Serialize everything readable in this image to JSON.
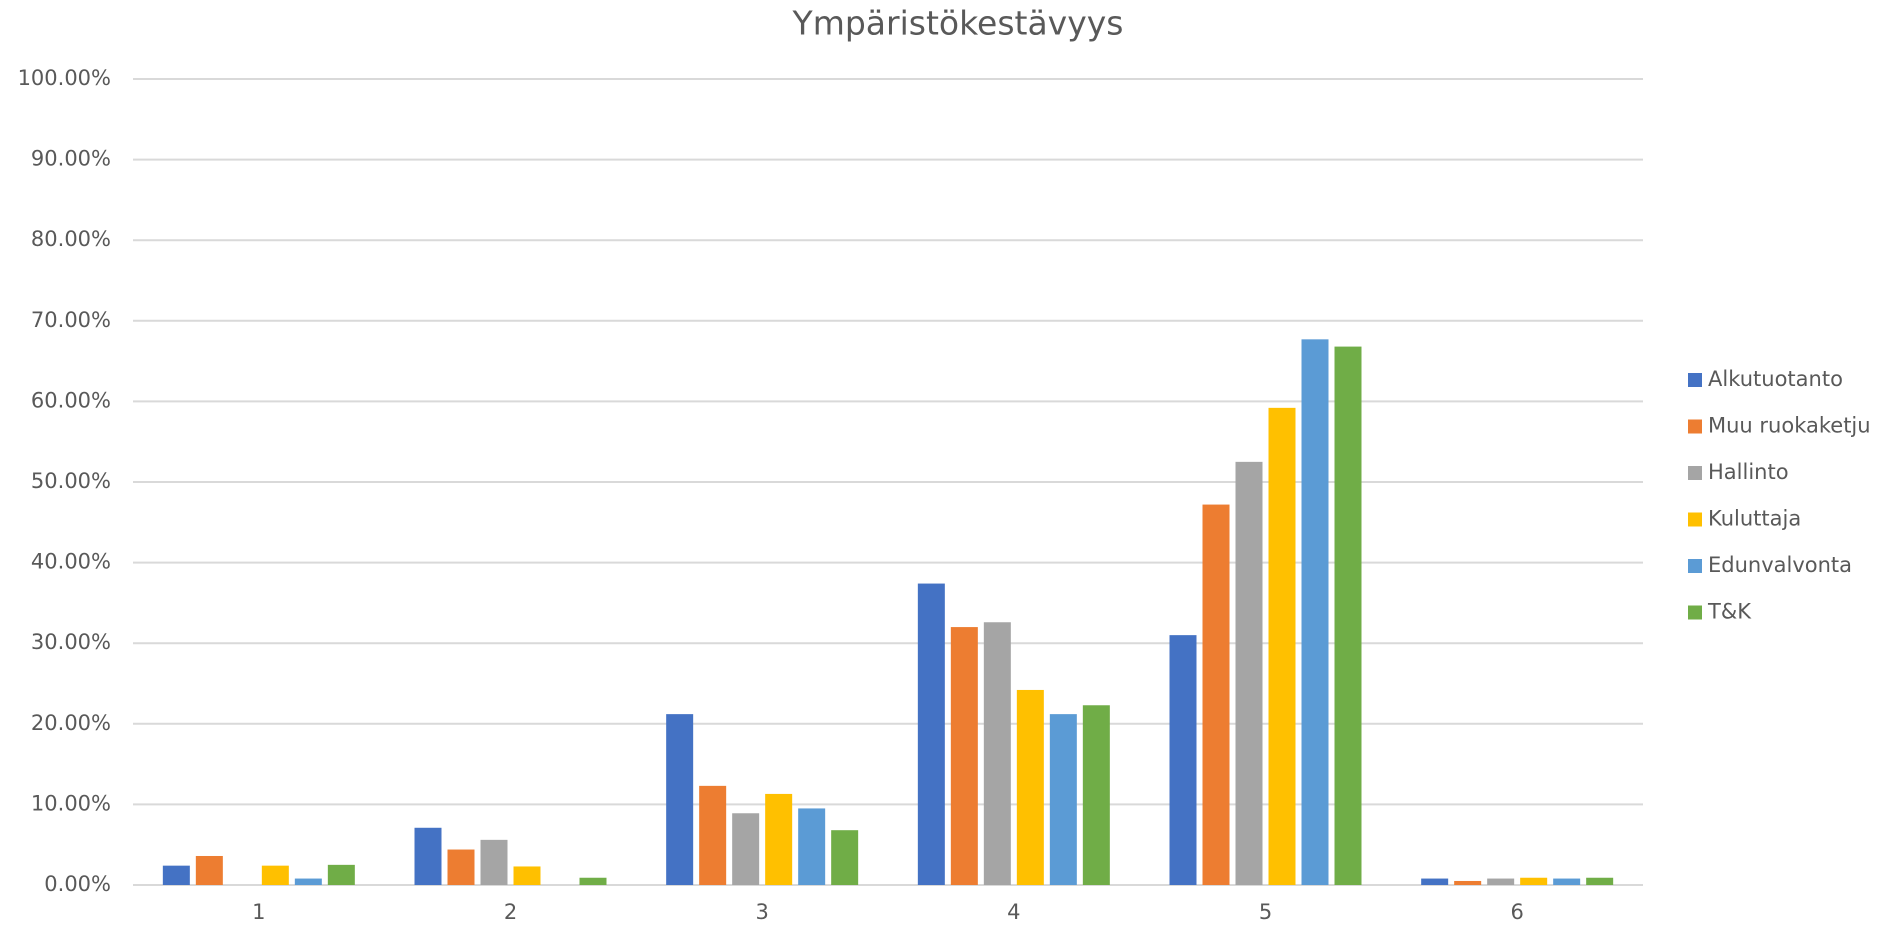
{
  "chart_data": {
    "type": "bar",
    "title": "Ympäristökestävyys",
    "categories": [
      "1",
      "2",
      "3",
      "4",
      "5",
      "6"
    ],
    "series": [
      {
        "name": "Alkutuotanto",
        "color": "#4472c4",
        "values": [
          2.4,
          7.1,
          21.2,
          37.4,
          31.0,
          0.8
        ]
      },
      {
        "name": "Muu ruokaketju",
        "color": "#ed7d31",
        "values": [
          3.6,
          4.4,
          12.3,
          32.0,
          47.2,
          0.5
        ]
      },
      {
        "name": "Hallinto",
        "color": "#a5a5a5",
        "values": [
          0,
          5.6,
          8.9,
          32.6,
          52.5,
          0.8
        ]
      },
      {
        "name": "Kuluttaja",
        "color": "#ffc000",
        "values": [
          2.4,
          2.3,
          11.3,
          24.2,
          59.2,
          0.9
        ]
      },
      {
        "name": "Edunvalvonta",
        "color": "#5b9bd5",
        "values": [
          0.8,
          0,
          9.5,
          21.2,
          67.7,
          0.8
        ]
      },
      {
        "name": "T&K",
        "color": "#70ad47",
        "values": [
          2.5,
          0.9,
          6.8,
          22.3,
          66.8,
          0.9
        ]
      }
    ],
    "ylim": [
      0,
      100
    ],
    "yticks": [
      {
        "value": 0,
        "label": "0.00%"
      },
      {
        "value": 10,
        "label": "10.00%"
      },
      {
        "value": 20,
        "label": "20.00%"
      },
      {
        "value": 30,
        "label": "30.00%"
      },
      {
        "value": 40,
        "label": "40.00%"
      },
      {
        "value": 50,
        "label": "50.00%"
      },
      {
        "value": 60,
        "label": "60.00%"
      },
      {
        "value": 70,
        "label": "70.00%"
      },
      {
        "value": 80,
        "label": "80.00%"
      },
      {
        "value": 90,
        "label": "90.00%"
      },
      {
        "value": 100,
        "label": "100.00%"
      }
    ],
    "grid": true,
    "legend": "right"
  }
}
